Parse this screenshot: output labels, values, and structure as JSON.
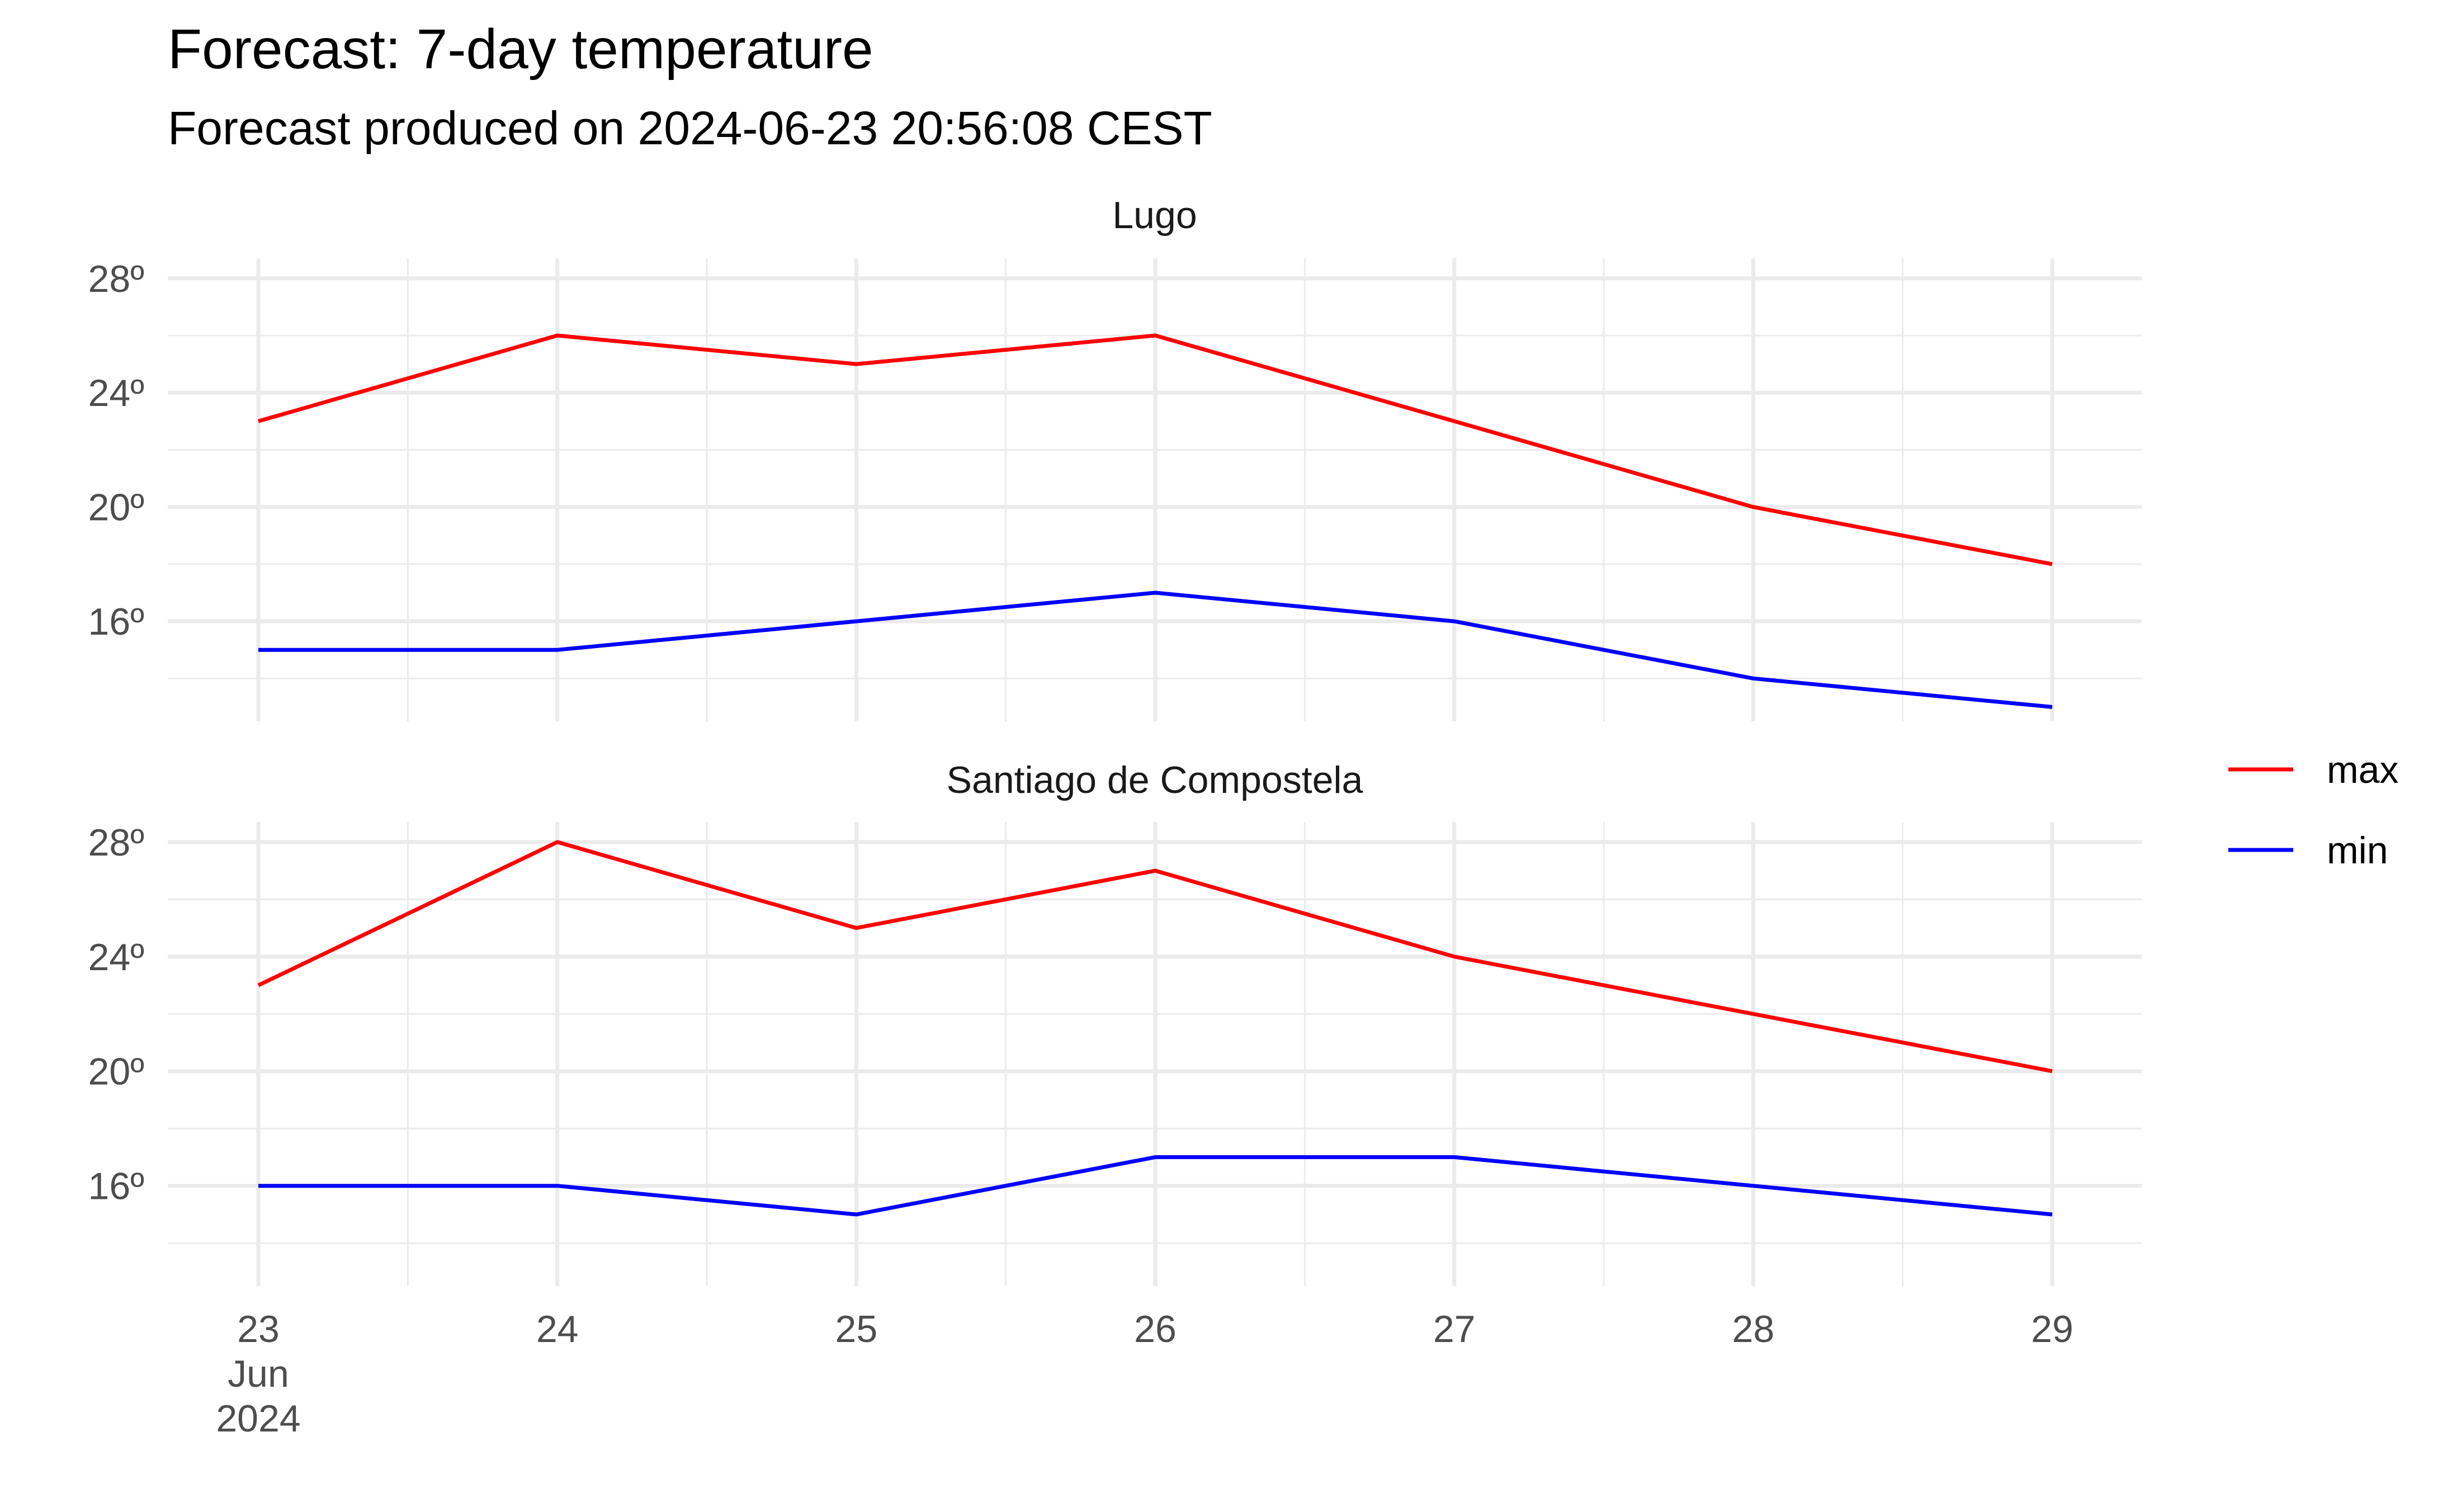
{
  "chart_data": {
    "type": "line",
    "title": "Forecast: 7-day temperature",
    "subtitle": "Forecast produced on 2024-06-23 20:56:08 CEST",
    "x": [
      "2024-06-23",
      "2024-06-24",
      "2024-06-25",
      "2024-06-26",
      "2024-06-27",
      "2024-06-28",
      "2024-06-29"
    ],
    "x_tick_labels": [
      "23\nJun\n2024",
      "24",
      "25",
      "26",
      "27",
      "28",
      "29"
    ],
    "y_ticks": [
      16,
      20,
      24,
      28
    ],
    "y_tick_labels": [
      "16º",
      "20º",
      "24º",
      "28º"
    ],
    "ylim": [
      12.5,
      28.7
    ],
    "grid": true,
    "legend": {
      "position": "right",
      "entries": [
        "max",
        "min"
      ]
    },
    "colors": {
      "max": "#ff0000",
      "min": "#0000ff"
    },
    "facets": [
      {
        "label": "Lugo",
        "series": [
          {
            "name": "max",
            "values": [
              23,
              26,
              25,
              26,
              23,
              20,
              18
            ]
          },
          {
            "name": "min",
            "values": [
              15,
              15,
              16,
              17,
              16,
              14,
              13
            ]
          }
        ]
      },
      {
        "label": "Santiago de Compostela",
        "series": [
          {
            "name": "max",
            "values": [
              23,
              28,
              25,
              27,
              24,
              22,
              20
            ]
          },
          {
            "name": "min",
            "values": [
              16,
              16,
              15,
              17,
              17,
              16,
              15
            ]
          }
        ]
      }
    ]
  }
}
